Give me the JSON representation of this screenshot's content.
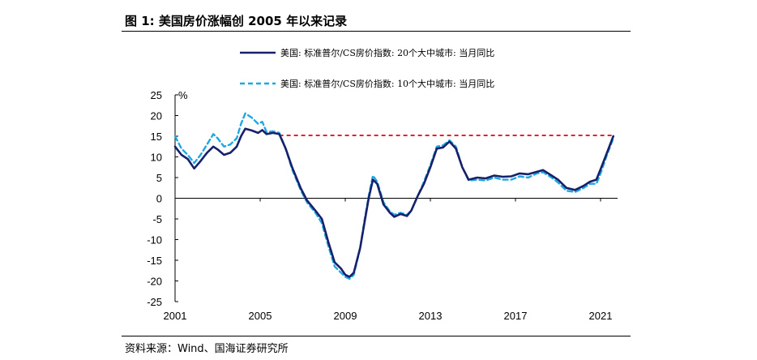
{
  "header": {
    "title": "图 1:  美国房价涨幅创 2005 年以来记录"
  },
  "footer": {
    "source": "资料来源：Wind、国海证券研究所"
  },
  "chart_data": {
    "type": "line",
    "ylabel": "%",
    "ylim": [
      -25,
      25
    ],
    "yticks": [
      25,
      20,
      15,
      10,
      5,
      0,
      -5,
      -10,
      -15,
      -20,
      -25
    ],
    "xlim": [
      2001,
      2021.8
    ],
    "xticks": [
      2001,
      2005,
      2009,
      2013,
      2017,
      2021
    ],
    "legend_position": "top",
    "grid": false,
    "series": [
      {
        "name": "美国: 标准普尔/CS房价指数: 20个大中城市: 当月同比",
        "color": "#16206b",
        "dash": "solid",
        "points": [
          [
            2001.0,
            12.5
          ],
          [
            2001.3,
            10.5
          ],
          [
            2001.6,
            9.5
          ],
          [
            2001.9,
            7.2
          ],
          [
            2002.2,
            9.0
          ],
          [
            2002.5,
            11.0
          ],
          [
            2002.8,
            12.5
          ],
          [
            2003.0,
            11.8
          ],
          [
            2003.3,
            10.5
          ],
          [
            2003.6,
            11.0
          ],
          [
            2003.9,
            12.5
          ],
          [
            2004.1,
            15.0
          ],
          [
            2004.3,
            16.8
          ],
          [
            2004.6,
            16.4
          ],
          [
            2004.9,
            15.8
          ],
          [
            2005.1,
            16.5
          ],
          [
            2005.3,
            15.5
          ],
          [
            2005.6,
            15.8
          ],
          [
            2005.9,
            15.5
          ],
          [
            2006.2,
            12.0
          ],
          [
            2006.5,
            7.5
          ],
          [
            2006.9,
            2.5
          ],
          [
            2007.2,
            -0.5
          ],
          [
            2007.6,
            -3.0
          ],
          [
            2007.9,
            -5.0
          ],
          [
            2008.2,
            -10.5
          ],
          [
            2008.5,
            -15.5
          ],
          [
            2008.8,
            -17.0
          ],
          [
            2009.0,
            -18.5
          ],
          [
            2009.2,
            -19.0
          ],
          [
            2009.4,
            -18.0
          ],
          [
            2009.7,
            -12.0
          ],
          [
            2009.9,
            -6.0
          ],
          [
            2010.1,
            0.0
          ],
          [
            2010.3,
            4.5
          ],
          [
            2010.5,
            3.5
          ],
          [
            2010.8,
            -1.5
          ],
          [
            2011.1,
            -3.5
          ],
          [
            2011.3,
            -4.5
          ],
          [
            2011.6,
            -3.8
          ],
          [
            2011.9,
            -4.3
          ],
          [
            2012.1,
            -3.0
          ],
          [
            2012.4,
            0.5
          ],
          [
            2012.7,
            3.5
          ],
          [
            2013.0,
            7.5
          ],
          [
            2013.3,
            12.0
          ],
          [
            2013.6,
            12.3
          ],
          [
            2013.9,
            13.7
          ],
          [
            2014.2,
            12.0
          ],
          [
            2014.5,
            7.5
          ],
          [
            2014.8,
            4.5
          ],
          [
            2015.2,
            5.0
          ],
          [
            2015.6,
            4.8
          ],
          [
            2016.0,
            5.5
          ],
          [
            2016.4,
            5.2
          ],
          [
            2016.8,
            5.3
          ],
          [
            2017.2,
            6.0
          ],
          [
            2017.6,
            5.8
          ],
          [
            2018.0,
            6.4
          ],
          [
            2018.3,
            6.8
          ],
          [
            2018.7,
            5.5
          ],
          [
            2019.0,
            4.5
          ],
          [
            2019.4,
            2.5
          ],
          [
            2019.8,
            2.0
          ],
          [
            2020.2,
            3.0
          ],
          [
            2020.5,
            4.0
          ],
          [
            2020.8,
            4.5
          ],
          [
            2021.0,
            7.0
          ],
          [
            2021.3,
            11.0
          ],
          [
            2021.6,
            15.0
          ]
        ]
      },
      {
        "name": "美国: 标准普尔/CS房价指数: 10个大中城市: 当月同比",
        "color": "#1ea7e1",
        "dash": "dashed",
        "points": [
          [
            2001.0,
            15.0
          ],
          [
            2001.3,
            12.0
          ],
          [
            2001.6,
            10.5
          ],
          [
            2001.9,
            8.5
          ],
          [
            2002.2,
            10.5
          ],
          [
            2002.5,
            13.0
          ],
          [
            2002.8,
            15.5
          ],
          [
            2003.0,
            14.5
          ],
          [
            2003.3,
            12.5
          ],
          [
            2003.6,
            13.0
          ],
          [
            2003.9,
            14.5
          ],
          [
            2004.1,
            18.0
          ],
          [
            2004.3,
            20.5
          ],
          [
            2004.6,
            19.5
          ],
          [
            2004.9,
            18.0
          ],
          [
            2005.1,
            18.5
          ],
          [
            2005.3,
            16.0
          ],
          [
            2005.6,
            16.2
          ],
          [
            2005.9,
            15.8
          ],
          [
            2006.2,
            12.0
          ],
          [
            2006.5,
            7.0
          ],
          [
            2006.9,
            2.0
          ],
          [
            2007.2,
            -1.0
          ],
          [
            2007.6,
            -3.5
          ],
          [
            2007.9,
            -6.0
          ],
          [
            2008.2,
            -11.5
          ],
          [
            2008.5,
            -16.5
          ],
          [
            2008.8,
            -18.0
          ],
          [
            2009.0,
            -19.0
          ],
          [
            2009.2,
            -19.5
          ],
          [
            2009.4,
            -18.5
          ],
          [
            2009.7,
            -12.0
          ],
          [
            2009.9,
            -5.5
          ],
          [
            2010.1,
            0.5
          ],
          [
            2010.3,
            5.5
          ],
          [
            2010.5,
            4.0
          ],
          [
            2010.8,
            -1.0
          ],
          [
            2011.1,
            -3.2
          ],
          [
            2011.3,
            -4.0
          ],
          [
            2011.6,
            -3.5
          ],
          [
            2011.9,
            -4.0
          ],
          [
            2012.1,
            -3.0
          ],
          [
            2012.4,
            0.5
          ],
          [
            2012.7,
            4.0
          ],
          [
            2013.0,
            8.0
          ],
          [
            2013.3,
            12.5
          ],
          [
            2013.6,
            12.8
          ],
          [
            2013.9,
            14.0
          ],
          [
            2014.2,
            12.5
          ],
          [
            2014.5,
            7.5
          ],
          [
            2014.8,
            4.3
          ],
          [
            2015.2,
            4.5
          ],
          [
            2015.6,
            4.3
          ],
          [
            2016.0,
            5.0
          ],
          [
            2016.4,
            4.5
          ],
          [
            2016.8,
            4.5
          ],
          [
            2017.2,
            5.3
          ],
          [
            2017.6,
            5.0
          ],
          [
            2018.0,
            6.0
          ],
          [
            2018.3,
            6.3
          ],
          [
            2018.7,
            5.0
          ],
          [
            2019.0,
            3.8
          ],
          [
            2019.4,
            1.8
          ],
          [
            2019.8,
            1.5
          ],
          [
            2020.2,
            2.5
          ],
          [
            2020.5,
            3.5
          ],
          [
            2020.8,
            3.5
          ],
          [
            2021.0,
            6.0
          ],
          [
            2021.3,
            10.5
          ],
          [
            2021.6,
            14.5
          ]
        ]
      }
    ],
    "reference_line": {
      "y": 15.2,
      "x_from": 2005.9,
      "x_to": 2021.6,
      "color": "#e8202a",
      "dash": "dashed"
    }
  }
}
